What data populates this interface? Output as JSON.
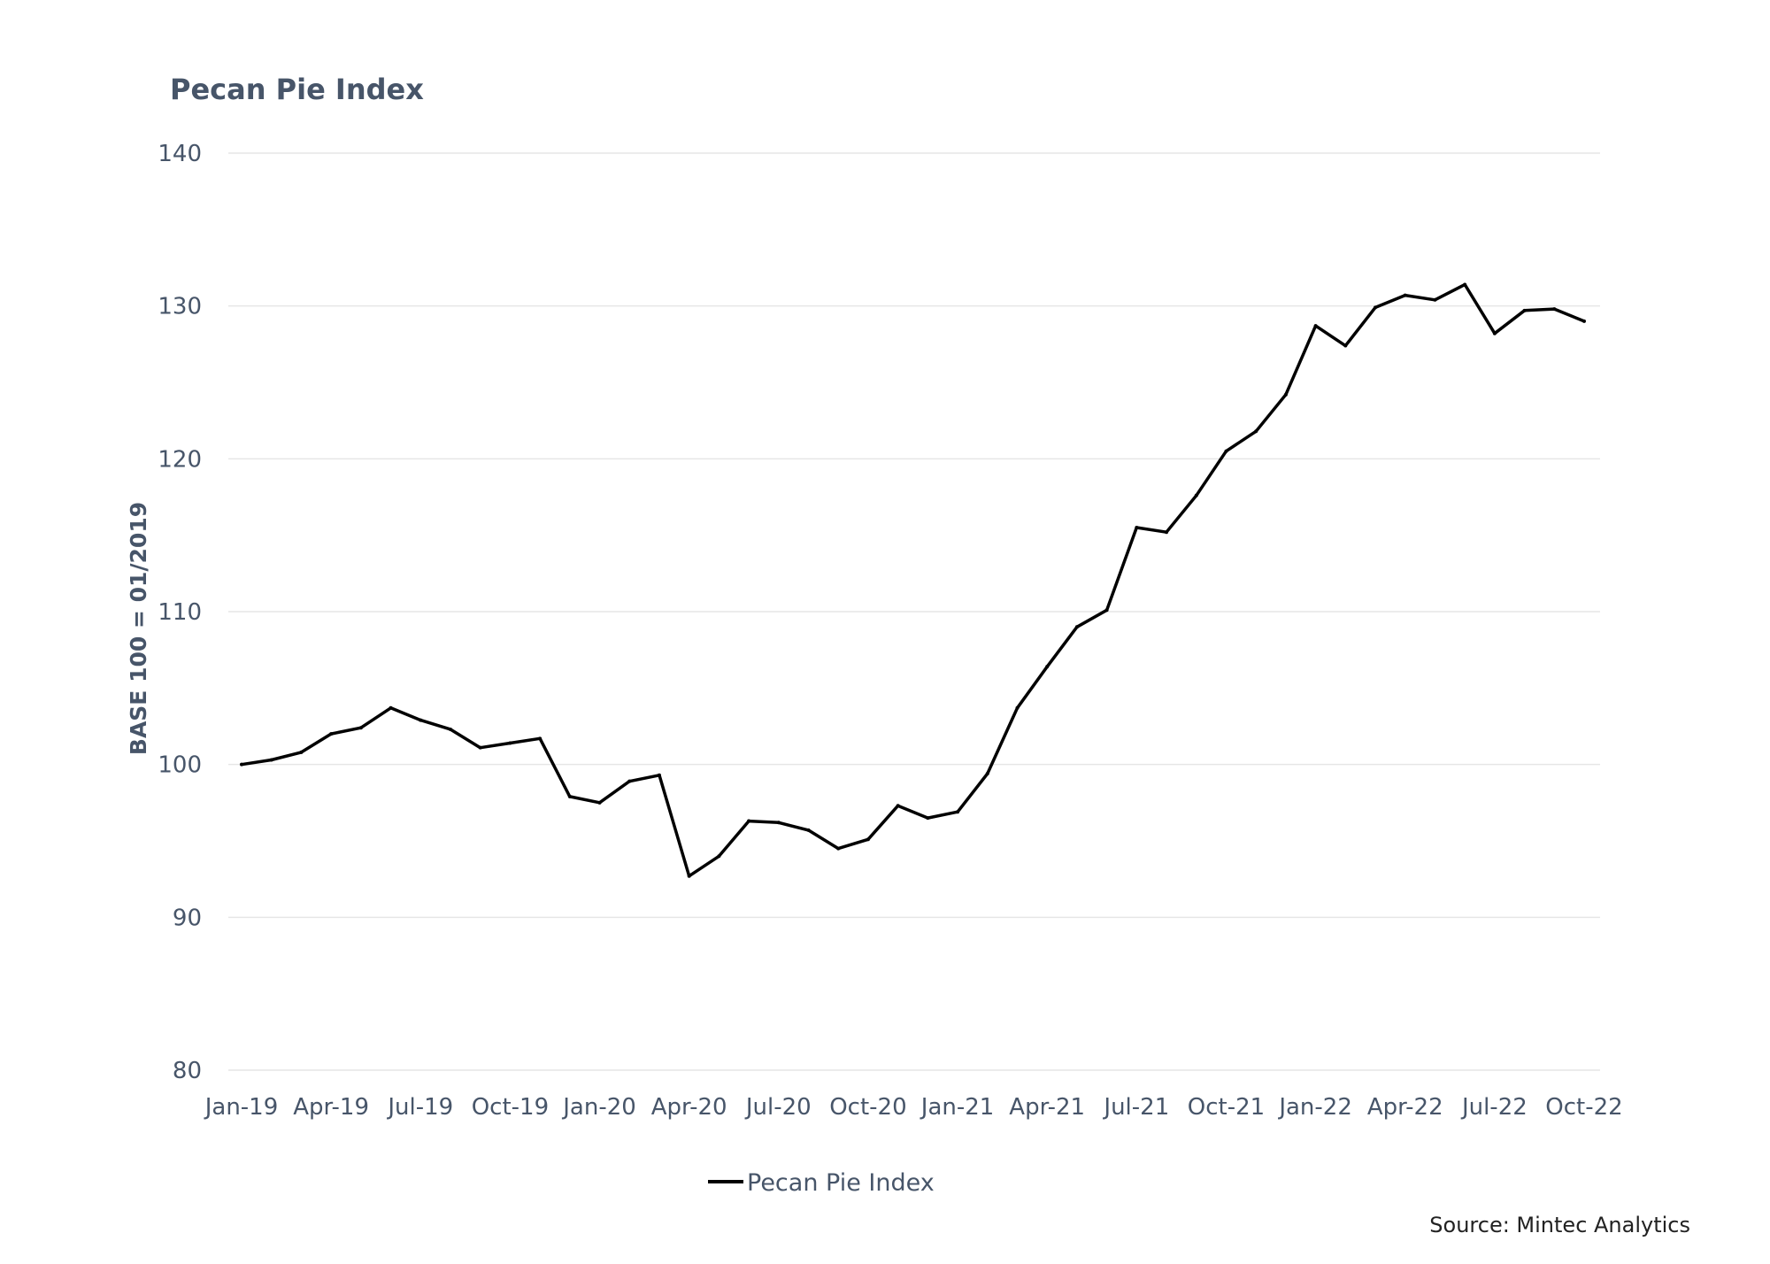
{
  "chart_data": {
    "type": "line",
    "title": "Pecan Pie Index",
    "ylabel": "BASE 100 = 01/2019",
    "xlabel": "",
    "ylim": [
      80,
      140
    ],
    "yticks": [
      "80",
      "90",
      "100",
      "110",
      "120",
      "130",
      "140"
    ],
    "xtick_labels": [
      "Jan-19",
      "Apr-19",
      "Jul-19",
      "Oct-19",
      "Jan-20",
      "Apr-20",
      "Jul-20",
      "Oct-20",
      "Jan-21",
      "Apr-21",
      "Jul-21",
      "Oct-21",
      "Jan-22",
      "Apr-22",
      "Jul-22",
      "Oct-22"
    ],
    "grid": true,
    "legend_position": "bottom",
    "series": [
      {
        "name": "Pecan Pie Index",
        "color": "#000000",
        "x": [
          "Jan-19",
          "Feb-19",
          "Mar-19",
          "Apr-19",
          "May-19",
          "Jun-19",
          "Jul-19",
          "Aug-19",
          "Sep-19",
          "Oct-19",
          "Nov-19",
          "Dec-19",
          "Jan-20",
          "Feb-20",
          "Mar-20",
          "Apr-20",
          "May-20",
          "Jun-20",
          "Jul-20",
          "Aug-20",
          "Sep-20",
          "Oct-20",
          "Nov-20",
          "Dec-20",
          "Jan-21",
          "Feb-21",
          "Mar-21",
          "Apr-21",
          "May-21",
          "Jun-21",
          "Jul-21",
          "Aug-21",
          "Sep-21",
          "Oct-21",
          "Nov-21",
          "Dec-21",
          "Jan-22",
          "Feb-22",
          "Mar-22",
          "Apr-22",
          "May-22",
          "Jun-22",
          "Jul-22",
          "Aug-22",
          "Sep-22",
          "Oct-22"
        ],
        "values": [
          100.0,
          100.3,
          100.8,
          102.0,
          102.4,
          103.7,
          102.9,
          102.3,
          101.1,
          101.4,
          101.7,
          97.9,
          97.5,
          98.9,
          99.3,
          92.7,
          94.0,
          96.3,
          96.2,
          95.7,
          94.5,
          95.1,
          97.3,
          96.5,
          96.9,
          99.4,
          103.7,
          106.4,
          109.0,
          110.1,
          115.5,
          115.2,
          117.6,
          120.5,
          121.8,
          124.2,
          128.7,
          127.4,
          129.9,
          130.7,
          130.4,
          131.4,
          128.2,
          129.7,
          129.8,
          129.0
        ]
      }
    ]
  },
  "source": "Source: Mintec Analytics"
}
